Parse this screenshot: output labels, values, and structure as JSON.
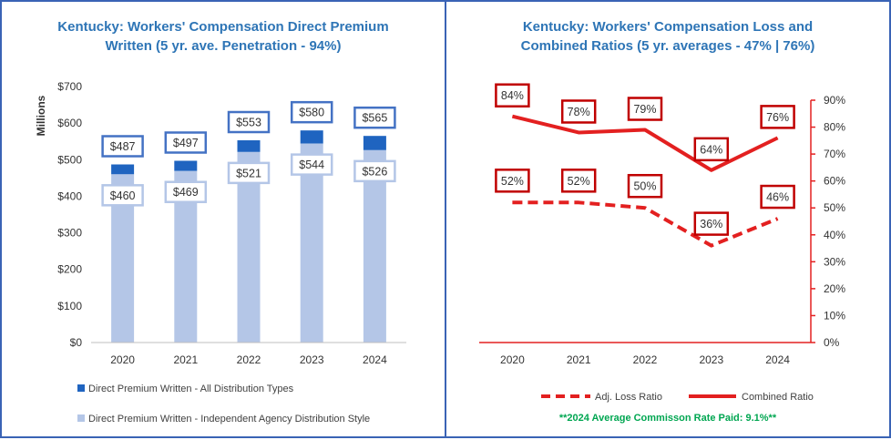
{
  "left": {
    "title_line1": "Kentucky: Workers' Compensation Direct Premium",
    "title_line2": "Written (5 yr. ave. Penetration - 94%)"
  },
  "right": {
    "title_line1": "Kentucky: Workers' Compensation Loss and",
    "title_line2": "Combined Ratios (5 yr. averages - 47% | 76%)",
    "note": "**2024 Average Commisson Rate Paid: 9.1%**"
  },
  "colors": {
    "all_dist": "#1f64c0",
    "indep": "#b4c6e7",
    "label_border_dark": "#4472c4",
    "label_border_light": "#b4c6e7",
    "ratio_red": "#e32020",
    "label_border_red": "#c00000"
  },
  "chart_data": [
    {
      "type": "bar",
      "categories": [
        "2020",
        "2021",
        "2022",
        "2023",
        "2024"
      ],
      "series": [
        {
          "name": "Direct Premium Written - All Distribution Types",
          "values": [
            487,
            497,
            553,
            580,
            565
          ],
          "labels": [
            "$487",
            "$497",
            "$553",
            "$580",
            "$565"
          ]
        },
        {
          "name": "Direct Premium Written - Independent Agency Distribution Style",
          "values": [
            460,
            469,
            521,
            544,
            526
          ],
          "labels": [
            "$460",
            "$469",
            "$521",
            "$544",
            "$526"
          ]
        }
      ],
      "ylabel": "Millions",
      "ylim": [
        0,
        700
      ],
      "yticks": [
        0,
        100,
        200,
        300,
        400,
        500,
        600,
        700
      ],
      "ytick_labels": [
        "$0",
        "$100",
        "$200",
        "$300",
        "$400",
        "$500",
        "$600",
        "$700"
      ],
      "legend": "bottom"
    },
    {
      "type": "line",
      "categories": [
        "2020",
        "2021",
        "2022",
        "2023",
        "2024"
      ],
      "series": [
        {
          "name": "Adj. Loss Ratio",
          "style": "dashed",
          "values": [
            52,
            52,
            50,
            36,
            46
          ],
          "labels": [
            "52%",
            "52%",
            "50%",
            "36%",
            "46%"
          ]
        },
        {
          "name": "Combined Ratio",
          "style": "solid",
          "values": [
            84,
            78,
            79,
            64,
            76
          ],
          "labels": [
            "84%",
            "78%",
            "79%",
            "64%",
            "76%"
          ]
        }
      ],
      "ylim": [
        0,
        90
      ],
      "yticks": [
        0,
        10,
        20,
        30,
        40,
        50,
        60,
        70,
        80,
        90
      ],
      "ytick_labels": [
        "0%",
        "10%",
        "20%",
        "30%",
        "40%",
        "50%",
        "60%",
        "70%",
        "80%",
        "90%"
      ],
      "yaxis_side": "right",
      "legend": "bottom"
    }
  ]
}
